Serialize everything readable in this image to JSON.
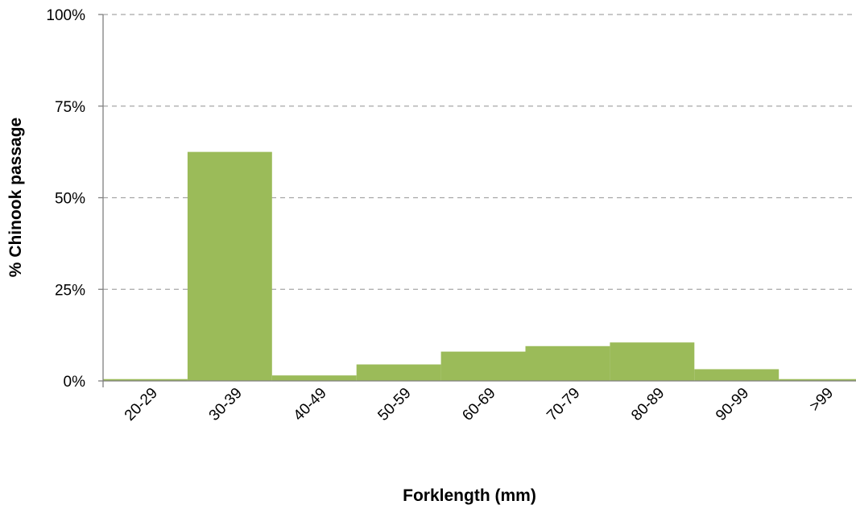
{
  "chart_data": {
    "type": "bar",
    "categories": [
      "20-29",
      "30-39",
      "40-49",
      "50-59",
      "60-69",
      "70-79",
      "80-89",
      "90-99",
      ">99"
    ],
    "values": [
      0.5,
      62.5,
      1.5,
      4.5,
      8,
      9.5,
      10.5,
      3.2,
      0.5
    ],
    "title": "",
    "xlabel": "Forklength (mm)",
    "ylabel": "% Chinook passage",
    "ylim": [
      0,
      100
    ],
    "yticks": [
      0,
      25,
      50,
      75,
      100
    ],
    "ytick_labels": [
      "0%",
      "25%",
      "50%",
      "75%",
      "100%"
    ],
    "grid": "horizontal dashed",
    "legend": "none",
    "bar_color": "#9bbb59",
    "grid_color": "#a6a6a6"
  }
}
